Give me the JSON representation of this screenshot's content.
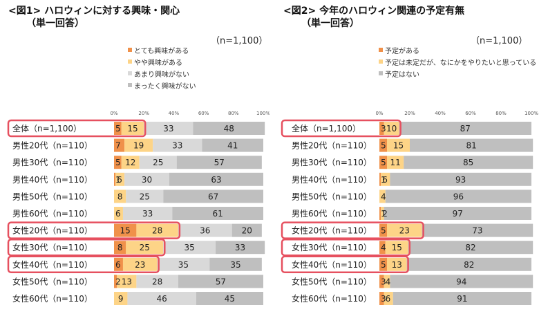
{
  "chart_data": [
    {
      "type": "bar",
      "stacked": true,
      "orientation": "horizontal",
      "title_line1": "<図1> ハロウィンに対する興味・関心",
      "title_line2": "（単一回答）",
      "n_label": "（n=1,100）",
      "xlim": [
        0,
        100
      ],
      "x_ticks": [
        "0%",
        "20%",
        "40%",
        "60%",
        "80%",
        "100%"
      ],
      "categories": [
        "全体（n=1,100）",
        "男性20代（n=110）",
        "男性30代（n=110）",
        "男性40代（n=110）",
        "男性50代（n=110）",
        "男性60代（n=110）",
        "女性20代（n=110）",
        "女性30代（n=110）",
        "女性40代（n=110）",
        "女性50代（n=110）",
        "女性60代（n=110）"
      ],
      "highlighted": [
        "全体（n=1,100）",
        "女性20代（n=110）",
        "女性30代（n=110）",
        "女性40代（n=110）"
      ],
      "series": [
        {
          "name": "とても興味がある",
          "color": "#f0914a",
          "values": [
            5,
            7,
            5,
            1,
            0,
            0,
            15,
            8,
            6,
            2,
            0
          ]
        },
        {
          "name": "やや興味がある",
          "color": "#fdd487",
          "values": [
            15,
            19,
            12,
            6,
            8,
            6,
            28,
            25,
            23,
            13,
            9
          ]
        },
        {
          "name": "あまり興味がない",
          "color": "#d9d9d9",
          "values": [
            33,
            33,
            25,
            30,
            25,
            33,
            36,
            35,
            35,
            28,
            46
          ]
        },
        {
          "name": "まったく興味がない",
          "color": "#bfbfbf",
          "values": [
            48,
            41,
            57,
            63,
            67,
            61,
            20,
            33,
            35,
            57,
            45
          ]
        }
      ]
    },
    {
      "type": "bar",
      "stacked": true,
      "orientation": "horizontal",
      "title_line1": "<図2> 今年のハロウィン関連の予定有無",
      "title_line2": "（単一回答）",
      "n_label": "（n=1,100）",
      "xlim": [
        0,
        100
      ],
      "x_ticks": [
        "0%",
        "20%",
        "40%",
        "60%",
        "80%",
        "100%"
      ],
      "categories": [
        "全体（n=1,100）",
        "男性20代（n=110）",
        "男性30代（n=110）",
        "男性40代（n=110）",
        "男性50代（n=110）",
        "男性60代（n=110）",
        "女性20代（n=110）",
        "女性30代（n=110）",
        "女性40代（n=110）",
        "女性50代（n=110）",
        "女性60代（n=110）"
      ],
      "highlighted": [
        "全体（n=1,100）",
        "女性20代（n=110）",
        "女性30代（n=110）",
        "女性40代（n=110）"
      ],
      "series": [
        {
          "name": "予定がある",
          "color": "#f0914a",
          "values": [
            3,
            5,
            5,
            1,
            0,
            1,
            5,
            4,
            5,
            3,
            3
          ]
        },
        {
          "name": "予定は未定だが、なにかをやりたいと思っている",
          "color": "#fdd487",
          "values": [
            10,
            15,
            11,
            6,
            4,
            2,
            23,
            15,
            13,
            4,
            6
          ]
        },
        {
          "name": "予定はない",
          "color": "#bfbfbf",
          "values": [
            87,
            81,
            85,
            93,
            96,
            97,
            73,
            82,
            82,
            94,
            91
          ]
        }
      ]
    }
  ]
}
